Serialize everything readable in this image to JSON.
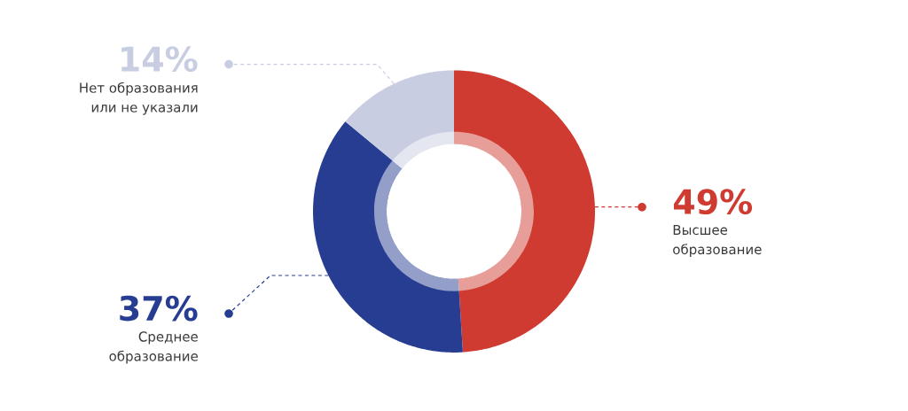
{
  "chart_data": {
    "type": "donut",
    "categories": [
      "Высшее образование",
      "Среднее образование",
      "Нет образования или не указали"
    ],
    "values": [
      49,
      37,
      14
    ],
    "colors": [
      "#cf3a31",
      "#263d92",
      "#c8cde1"
    ],
    "value_labels": [
      "49%",
      "37%",
      "14%"
    ]
  }
}
